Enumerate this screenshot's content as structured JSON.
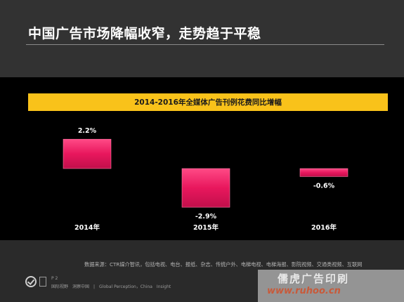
{
  "slide": {
    "title": "中国广告市场降幅收窄，走势趋于平稳"
  },
  "chart_data": {
    "type": "bar",
    "title": "2014-2016年全媒体广告刊例花费同比增幅",
    "categories": [
      "2014年",
      "2015年",
      "2016年"
    ],
    "values": [
      2.2,
      -2.9,
      -0.6
    ],
    "value_labels": [
      "2.2%",
      "-2.9%",
      "-0.6%"
    ],
    "unit": "%",
    "ylim": [
      -3.5,
      3.0
    ],
    "grid": false,
    "legend": "none",
    "bar_color": "#e8175d"
  },
  "footer": {
    "source": "数据来源：CTR媒介智讯，包括电视、电台、报纸、杂志、传统户外、电梯电视、电梯海报、影院视频、交通类视频、互联网",
    "page": "P 2",
    "brand": "国际视野　洞察中国　|　Global Perception，China　Insight"
  },
  "watermark": {
    "text_cn": "儒虎广告印刷",
    "url": "www.ruhoo.cn"
  }
}
